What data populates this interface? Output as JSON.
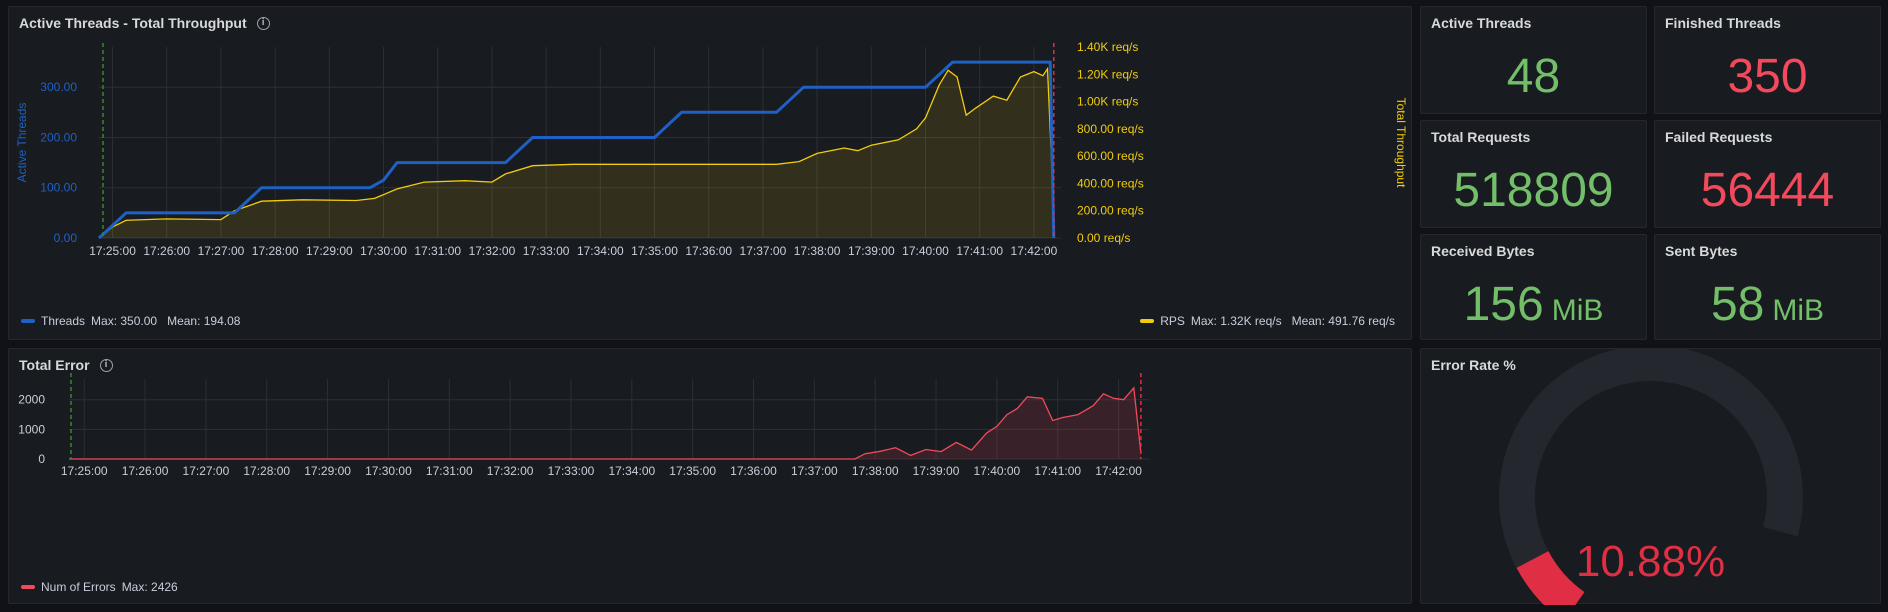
{
  "panels": {
    "threads": {
      "title": "Active Threads - Total Throughput",
      "left_axis_label": "Active Threads",
      "right_axis_label": "Total Throughput",
      "legend_left": {
        "name": "Threads",
        "stats": "Max: 350.00   Mean: 194.08"
      },
      "legend_right": {
        "name": "RPS",
        "stats": "Max: 1.32K req/s   Mean: 491.76 req/s"
      }
    },
    "errors": {
      "title": "Total Error",
      "legend": {
        "name": "Num of Errors",
        "stats": "Max: 2426"
      }
    },
    "stats": [
      {
        "title": "Active Threads",
        "value": "48",
        "unit": "",
        "color": "#73bf69"
      },
      {
        "title": "Finished Threads",
        "value": "350",
        "unit": "",
        "color": "#f2495c"
      },
      {
        "title": "Total Requests",
        "value": "518809",
        "unit": "",
        "color": "#73bf69"
      },
      {
        "title": "Failed Requests",
        "value": "56444",
        "unit": "",
        "color": "#f2495c"
      },
      {
        "title": "Received Bytes",
        "value": "156",
        "unit": "MiB",
        "color": "#73bf69"
      },
      {
        "title": "Sent Bytes",
        "value": "58",
        "unit": "MiB",
        "color": "#73bf69"
      }
    ],
    "gauge": {
      "title": "Error Rate %",
      "value": "10.88%",
      "fraction": 0.1088,
      "color": "#e02f44"
    }
  },
  "colors": {
    "threads": "#1f60c4",
    "rps": "#f2cc0c",
    "errors": "#f2495c",
    "grid": "#2c3036",
    "tick": "#ccccdc"
  },
  "chart_data": [
    {
      "type": "line",
      "name": "threads-throughput",
      "title": "Active Threads - Total Throughput",
      "x_ticks": [
        "17:25:00",
        "17:26:00",
        "17:27:00",
        "17:28:00",
        "17:29:00",
        "17:30:00",
        "17:31:00",
        "17:32:00",
        "17:33:00",
        "17:34:00",
        "17:35:00",
        "17:36:00",
        "17:37:00",
        "17:38:00",
        "17:39:00",
        "17:40:00",
        "17:41:00",
        "17:42:00"
      ],
      "xlim": [
        "17:24:45",
        "17:42:30"
      ],
      "y_left": {
        "label": "Active Threads",
        "ticks": [
          "0.00",
          "100.00",
          "200.00",
          "300.00"
        ],
        "ylim": [
          0,
          380
        ]
      },
      "y_right": {
        "label": "Total Throughput",
        "ticks": [
          "0.00 req/s",
          "200.00 req/s",
          "400.00 req/s",
          "600.00 req/s",
          "800.00 req/s",
          "1.00K req/s",
          "1.20K req/s",
          "1.40K req/s"
        ],
        "ylim": [
          0,
          1400
        ]
      },
      "series": [
        {
          "name": "Threads",
          "axis": "left",
          "x": [
            "17:24:45",
            "17:25:15",
            "17:27:15",
            "17:27:45",
            "17:29:45",
            "17:30:00",
            "17:30:15",
            "17:32:15",
            "17:32:45",
            "17:35:00",
            "17:35:30",
            "17:37:15",
            "17:37:45",
            "17:40:00",
            "17:40:30",
            "17:42:18",
            "17:42:22"
          ],
          "values": [
            0,
            50,
            50,
            100,
            100,
            115,
            150,
            150,
            200,
            200,
            250,
            250,
            300,
            300,
            350,
            350,
            0
          ]
        },
        {
          "name": "RPS",
          "axis": "right",
          "x": [
            "17:24:45",
            "17:25:00",
            "17:25:15",
            "17:26:00",
            "17:27:00",
            "17:27:15",
            "17:27:45",
            "17:28:30",
            "17:29:30",
            "17:29:50",
            "17:30:15",
            "17:30:45",
            "17:31:30",
            "17:32:00",
            "17:32:15",
            "17:32:45",
            "17:33:30",
            "17:34:30",
            "17:35:30",
            "17:36:30",
            "17:37:15",
            "17:37:40",
            "17:38:00",
            "17:38:30",
            "17:38:45",
            "17:39:00",
            "17:39:30",
            "17:39:50",
            "17:40:00",
            "17:40:15",
            "17:40:25",
            "17:40:35",
            "17:40:45",
            "17:40:55",
            "17:41:15",
            "17:41:30",
            "17:41:45",
            "17:42:00",
            "17:42:10",
            "17:42:15",
            "17:42:22"
          ],
          "values": [
            0,
            80,
            130,
            140,
            135,
            200,
            270,
            280,
            275,
            290,
            360,
            410,
            420,
            410,
            470,
            530,
            540,
            540,
            540,
            540,
            540,
            560,
            620,
            660,
            640,
            680,
            720,
            800,
            880,
            1120,
            1230,
            1180,
            900,
            950,
            1040,
            1010,
            1180,
            1220,
            1190,
            1240,
            200
          ]
        }
      ]
    },
    {
      "type": "area",
      "name": "total-error",
      "title": "Total Error",
      "x_ticks": [
        "17:25:00",
        "17:26:00",
        "17:27:00",
        "17:28:00",
        "17:29:00",
        "17:30:00",
        "17:31:00",
        "17:32:00",
        "17:33:00",
        "17:34:00",
        "17:35:00",
        "17:36:00",
        "17:37:00",
        "17:38:00",
        "17:39:00",
        "17:40:00",
        "17:41:00",
        "17:42:00"
      ],
      "xlim": [
        "17:24:45",
        "17:42:30"
      ],
      "yticks": [
        "0",
        "1000",
        "2000"
      ],
      "ylim": [
        0,
        2700
      ],
      "series": [
        {
          "name": "Num of Errors",
          "x": [
            "17:24:45",
            "17:37:40",
            "17:37:50",
            "17:38:05",
            "17:38:20",
            "17:38:35",
            "17:38:50",
            "17:39:05",
            "17:39:20",
            "17:39:35",
            "17:39:50",
            "17:40:00",
            "17:40:10",
            "17:40:20",
            "17:40:30",
            "17:40:45",
            "17:40:55",
            "17:41:05",
            "17:41:20",
            "17:41:35",
            "17:41:45",
            "17:41:55",
            "17:42:05",
            "17:42:15",
            "17:42:22"
          ],
          "values": [
            0,
            0,
            180,
            260,
            380,
            120,
            320,
            250,
            560,
            300,
            880,
            1100,
            1500,
            1700,
            2100,
            2050,
            1300,
            1400,
            1500,
            1800,
            2200,
            2050,
            2000,
            2400,
            200
          ]
        }
      ]
    },
    {
      "type": "gauge",
      "name": "error-rate",
      "title": "Error Rate %",
      "value": 10.88,
      "range": [
        0,
        100
      ]
    }
  ]
}
